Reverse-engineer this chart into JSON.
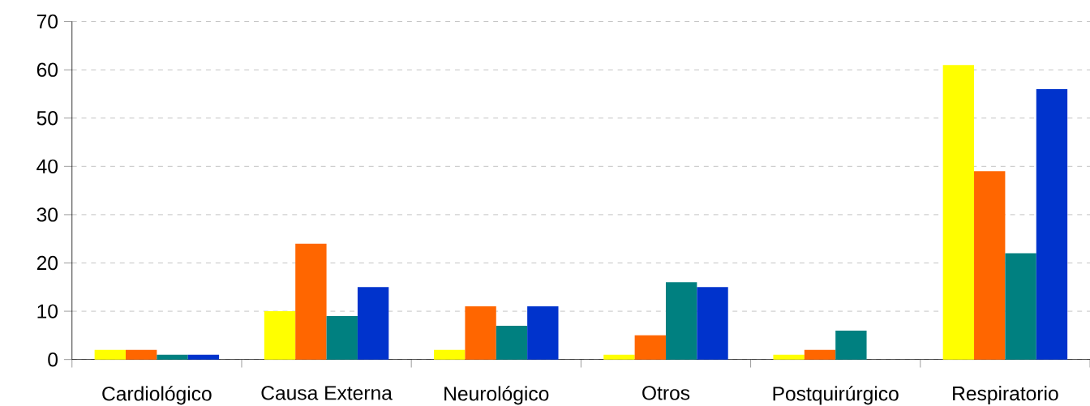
{
  "chart_data": {
    "type": "bar",
    "categories": [
      "Cardiológico",
      "Causa Externa",
      "Neurológico",
      "Otros",
      "Postquirúrgico",
      "Respiratorio"
    ],
    "series": [
      {
        "color": "#ffff00",
        "values": [
          2,
          10,
          2,
          1,
          1,
          61
        ]
      },
      {
        "color": "#ff6600",
        "values": [
          2,
          24,
          11,
          5,
          2,
          39
        ]
      },
      {
        "color": "#008080",
        "values": [
          1,
          9,
          7,
          16,
          6,
          22
        ]
      },
      {
        "color": "#0033cc",
        "values": [
          1,
          15,
          11,
          15,
          0,
          56
        ]
      }
    ],
    "ylim": [
      0,
      70
    ],
    "yticks": [
      0,
      10,
      20,
      30,
      40,
      50,
      60,
      70
    ],
    "grid": "y"
  }
}
